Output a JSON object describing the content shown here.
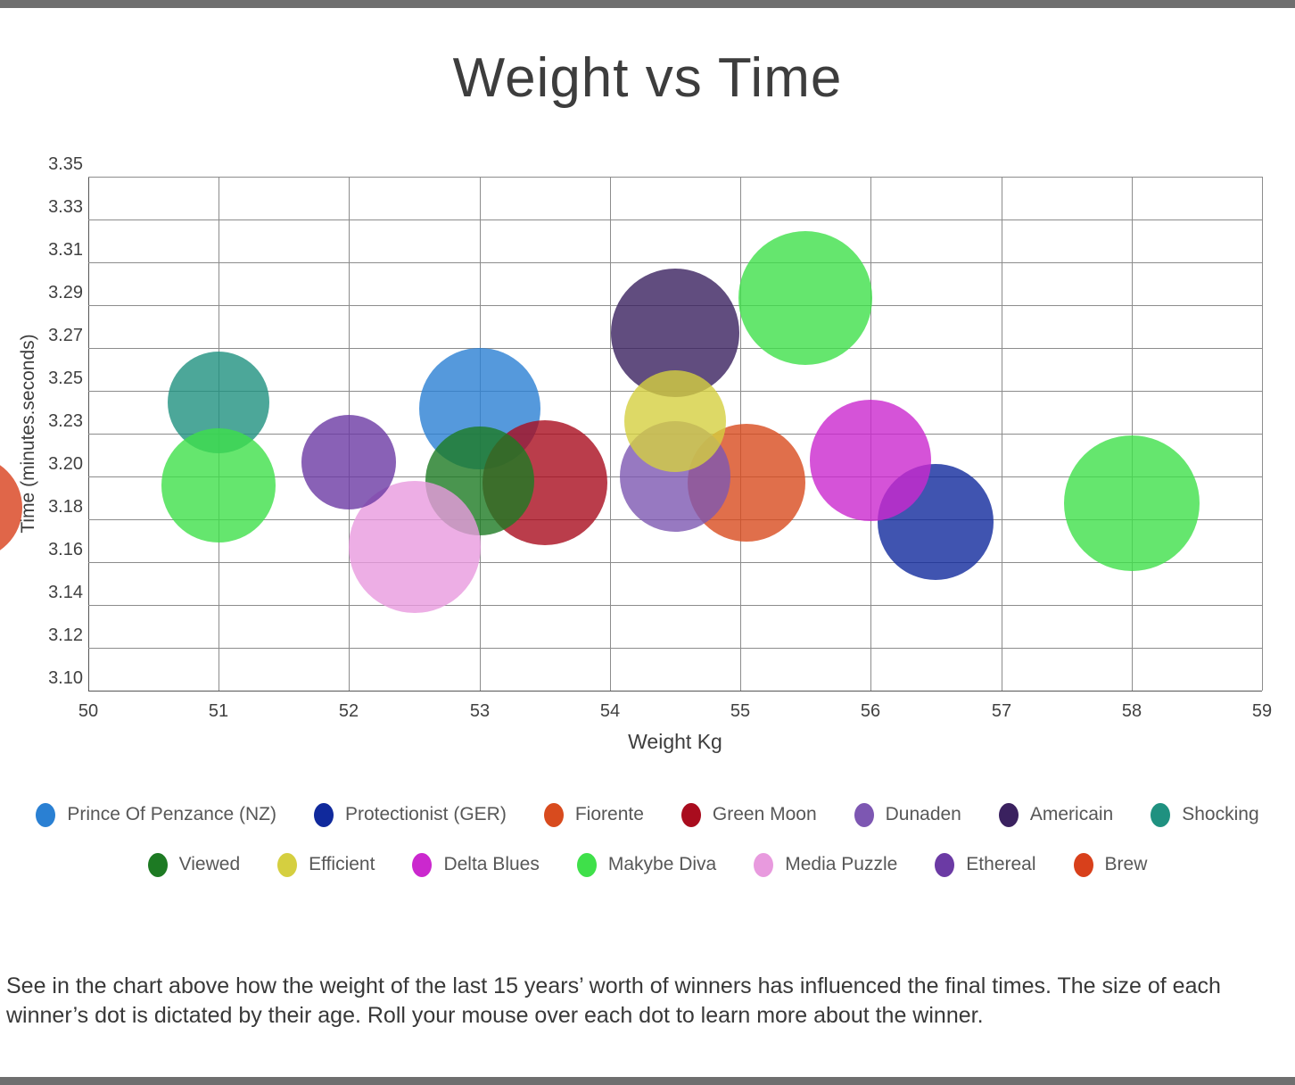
{
  "page": {
    "top_bar_color": "#6f6f6f",
    "bottom_bar_color": "#6f6f6f",
    "background": "#ffffff"
  },
  "chart_data": {
    "type": "scatter",
    "subtype": "bubble",
    "title": "Weight vs Time",
    "xlabel": "Weight Kg",
    "ylabel": "Time (minutes.seconds)",
    "x_ticks": [
      50,
      51,
      52,
      53,
      54,
      55,
      56,
      57,
      58,
      59
    ],
    "y_tick_labels": [
      "3.35",
      "3.33",
      "3.31",
      "3.29",
      "3.27",
      "3.25",
      "3.23",
      "3.20",
      "3.18",
      "3.16",
      "3.14",
      "3.12",
      "3.10"
    ],
    "x_range": [
      50,
      59
    ],
    "y_range_seconds": [
      190,
      215
    ],
    "grid": true,
    "grid_color": "#8c8c8c",
    "axis_color": "#555555",
    "bubble_opacity": 0.8,
    "legend_position": "bottom",
    "legend_rows": [
      [
        "Prince Of Penzance (NZ)",
        "Protectionist (GER)",
        "Fiorente",
        "Green Moon",
        "Dunaden",
        "Americain",
        "Shocking"
      ],
      [
        "Viewed",
        "Efficient",
        "Delta Blues",
        "Makybe Diva",
        "Media Puzzle",
        "Ethereal",
        "Brew"
      ]
    ],
    "series": [
      {
        "name": "Prince Of Penzance (NZ)",
        "color": "#2a80d3",
        "points": [
          {
            "weight": 53,
            "time_sec": 203.7,
            "r": 68
          }
        ]
      },
      {
        "name": "Protectionist (GER)",
        "color": "#10299c",
        "points": [
          {
            "weight": 56.5,
            "time_sec": 198.2,
            "r": 65
          }
        ]
      },
      {
        "name": "Fiorente",
        "color": "#d84b1e",
        "points": [
          {
            "weight": 55.05,
            "time_sec": 200.1,
            "r": 66
          }
        ]
      },
      {
        "name": "Green Moon",
        "color": "#a90c1e",
        "points": [
          {
            "weight": 53.5,
            "time_sec": 200.1,
            "r": 70
          }
        ]
      },
      {
        "name": "Dunaden",
        "color": "#7d57b2",
        "points": [
          {
            "weight": 54.5,
            "time_sec": 200.4,
            "r": 62
          }
        ]
      },
      {
        "name": "Americain",
        "color": "#3a215f",
        "points": [
          {
            "weight": 54.5,
            "time_sec": 207.4,
            "r": 72
          }
        ]
      },
      {
        "name": "Shocking",
        "color": "#1f9180",
        "points": [
          {
            "weight": 51,
            "time_sec": 204.0,
            "r": 57
          }
        ]
      },
      {
        "name": "Viewed",
        "color": "#1d7a23",
        "points": [
          {
            "weight": 53,
            "time_sec": 200.2,
            "r": 61
          }
        ]
      },
      {
        "name": "Efficient",
        "color": "#d5cf40",
        "points": [
          {
            "weight": 54.5,
            "time_sec": 203.1,
            "r": 57
          }
        ]
      },
      {
        "name": "Delta Blues",
        "color": "#cb28ce",
        "points": [
          {
            "weight": 56,
            "time_sec": 201.2,
            "r": 68
          }
        ]
      },
      {
        "name": "Makybe Diva",
        "color": "#3fe04a",
        "points": [
          {
            "weight": 51,
            "time_sec": 200.0,
            "r": 64
          },
          {
            "weight": 55.5,
            "time_sec": 209.1,
            "r": 75
          },
          {
            "weight": 58,
            "time_sec": 199.1,
            "r": 76
          }
        ]
      },
      {
        "name": "Media Puzzle",
        "color": "#e89ade",
        "points": [
          {
            "weight": 52.5,
            "time_sec": 197.0,
            "r": 74
          }
        ]
      },
      {
        "name": "Ethereal",
        "color": "#6b3aa4",
        "points": [
          {
            "weight": 52,
            "time_sec": 201.1,
            "r": 53
          }
        ]
      },
      {
        "name": "Brew",
        "color": "#d8401b",
        "points": [
          {
            "weight": 49.1,
            "time_sec": 198.9,
            "r": 58
          }
        ]
      }
    ]
  },
  "caption": {
    "text": "See in the chart above how the weight of the last 15 years’ worth of winners has influenced the final times. The size of each winner’s dot is dictated by their age. Roll your mouse over each dot to learn more about the winner."
  }
}
